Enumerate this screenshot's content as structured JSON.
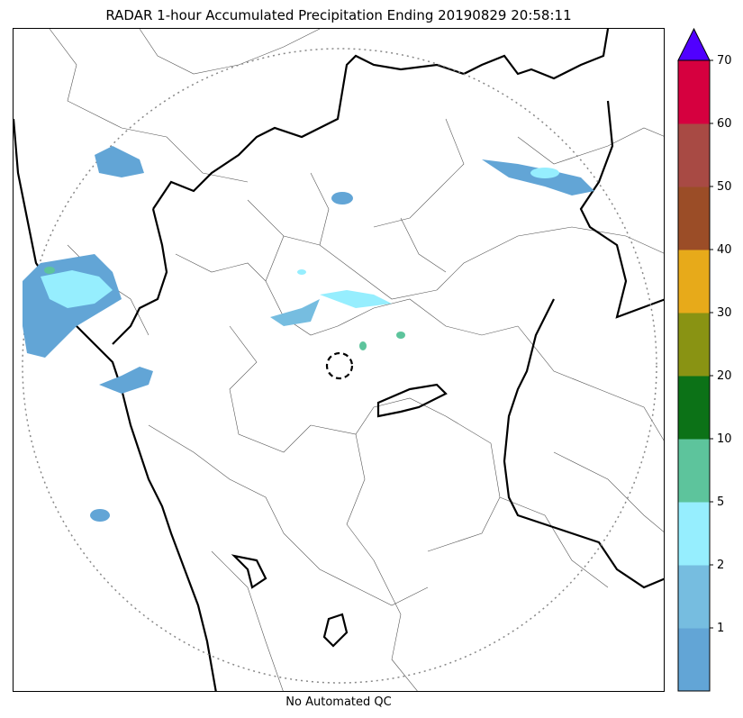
{
  "title": "RADAR 1-hour Accumulated Precipitation Ending 20190829 20:58:11",
  "qc_note": "No Automated QC",
  "colorbar": {
    "extend_color": "#5000ff",
    "segments": [
      {
        "color": "#62a5d6"
      },
      {
        "color": "#76bde0"
      },
      {
        "color": "#96eefe"
      },
      {
        "color": "#5dc49c"
      },
      {
        "color": "#0c7217"
      },
      {
        "color": "#899313"
      },
      {
        "color": "#e7aa1a"
      },
      {
        "color": "#9b4d27"
      },
      {
        "color": "#a84a44"
      },
      {
        "color": "#d6003f"
      }
    ],
    "tick_labels": [
      "1",
      "2",
      "5",
      "10",
      "20",
      "30",
      "40",
      "50",
      "60",
      "70"
    ]
  },
  "map": {
    "range_ring": "dotted-circle",
    "radar_site": "dashed-circle",
    "precip_colors": {
      "light": "#62a5d6",
      "moderate": "#96eefe",
      "heavy": "#5dc49c"
    }
  }
}
